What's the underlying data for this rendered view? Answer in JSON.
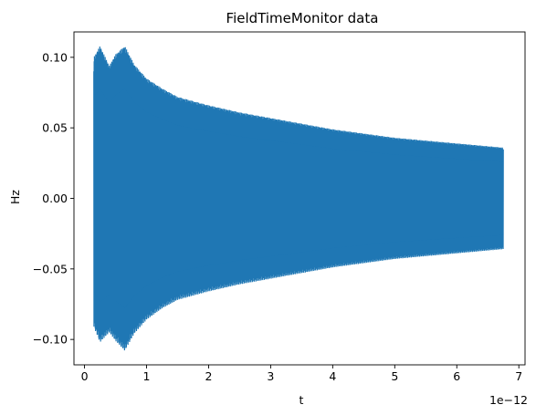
{
  "chart_data": {
    "type": "line",
    "title": "FieldTimeMonitor data",
    "xlabel": "t",
    "ylabel": "Hz",
    "x_offset_label": "1e−12",
    "xlim": [
      -0.17,
      7.1
    ],
    "ylim": [
      -0.118,
      0.118
    ],
    "x_ticks": [
      0,
      1,
      2,
      3,
      4,
      5,
      6,
      7
    ],
    "x_tick_labels": [
      "0",
      "1",
      "2",
      "3",
      "4",
      "5",
      "6",
      "7"
    ],
    "y_ticks": [
      0.1,
      0.05,
      0.0,
      -0.05,
      -0.1
    ],
    "y_tick_labels": [
      "0.10",
      "0.05",
      "0.00",
      "−0.05",
      "−0.10"
    ],
    "grid": false,
    "legend": "none",
    "series": [
      {
        "color": "#1f77b4",
        "t_unit_scale": 1e-12,
        "envelope": {
          "t": [
            0.15,
            0.25,
            0.4,
            0.5,
            0.65,
            0.8,
            1.0,
            1.25,
            1.5,
            2.0,
            2.5,
            3.0,
            3.5,
            4.0,
            4.5,
            5.0,
            5.5,
            6.0,
            6.5,
            6.75
          ],
          "upper": [
            0.1,
            0.108,
            0.094,
            0.102,
            0.108,
            0.095,
            0.085,
            0.078,
            0.072,
            0.066,
            0.061,
            0.057,
            0.053,
            0.049,
            0.046,
            0.043,
            0.041,
            0.039,
            0.037,
            0.036
          ],
          "lower": [
            -0.091,
            -0.102,
            -0.095,
            -0.101,
            -0.108,
            -0.096,
            -0.086,
            -0.078,
            -0.072,
            -0.066,
            -0.061,
            -0.057,
            -0.053,
            -0.049,
            -0.046,
            -0.043,
            -0.041,
            -0.039,
            -0.037,
            -0.036
          ]
        }
      }
    ]
  }
}
